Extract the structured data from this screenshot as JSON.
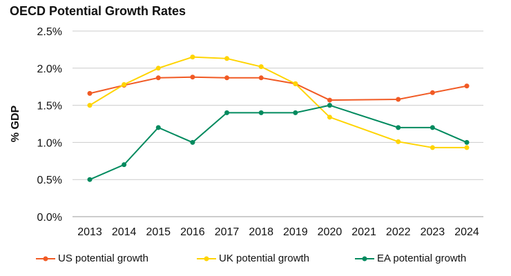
{
  "chart_data": {
    "type": "line",
    "title": "OECD Potential Growth Rates",
    "xlabel": "",
    "ylabel": "% GDP",
    "ylim": [
      0,
      2.5
    ],
    "yticks": [
      "0.0%",
      "0.5%",
      "1.0%",
      "1.5%",
      "2.0%",
      "2.5%"
    ],
    "ytick_values": [
      0,
      0.5,
      1.0,
      1.5,
      2.0,
      2.5
    ],
    "grid": true,
    "legend_placement": "bottom",
    "categories": [
      "2013",
      "2014",
      "2015",
      "2016",
      "2017",
      "2018",
      "2019",
      "2020",
      "2021",
      "2022",
      "2023",
      "2024"
    ],
    "series": [
      {
        "name": "US potential growth",
        "color": "#f15a24",
        "values": [
          1.66,
          1.77,
          1.87,
          1.88,
          1.87,
          1.87,
          1.79,
          1.57,
          null,
          1.58,
          1.67,
          1.76
        ]
      },
      {
        "name": "UK potential growth",
        "color": "#ffd400",
        "values": [
          1.5,
          1.78,
          2.0,
          2.15,
          2.13,
          2.02,
          1.79,
          1.34,
          null,
          1.01,
          0.93,
          0.93
        ]
      },
      {
        "name": "EA potential growth",
        "color": "#008a5e",
        "values": [
          0.5,
          0.7,
          1.2,
          1.0,
          1.4,
          1.4,
          1.4,
          1.5,
          null,
          1.2,
          1.2,
          1.0
        ]
      }
    ]
  }
}
